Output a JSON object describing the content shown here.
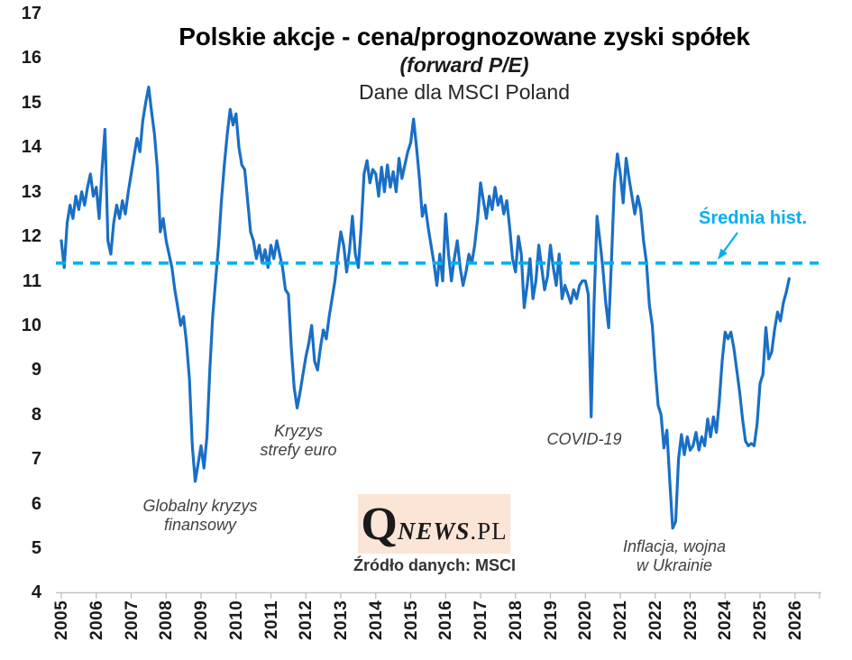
{
  "chart_data": {
    "type": "line",
    "title": "Polskie akcje - cena/prognozowane zyski spółek",
    "subtitle": "(forward P/E)",
    "subtitle2": "Dane dla MSCI Poland",
    "xlabel": "",
    "ylabel": "",
    "ylim": [
      4,
      17
    ],
    "yticks": [
      17,
      16,
      15,
      14,
      13,
      12,
      11,
      10,
      9,
      8,
      7,
      6,
      5,
      4
    ],
    "xticks": [
      2005,
      2006,
      2007,
      2008,
      2009,
      2010,
      2011,
      2012,
      2013,
      2014,
      2015,
      2016,
      2017,
      2018,
      2019,
      2020,
      2021,
      2022,
      2023,
      2024,
      2025,
      2026
    ],
    "grid": false,
    "legend_position": "none",
    "series": [
      {
        "name": "MSCI Poland forward P/E",
        "color": "#1A6FC5",
        "start": "2005-01",
        "frequency": "monthly",
        "values": [
          11.9,
          11.3,
          12.3,
          12.7,
          12.4,
          12.9,
          12.6,
          13.0,
          12.7,
          13.1,
          13.4,
          12.9,
          13.1,
          12.4,
          13.5,
          14.4,
          11.9,
          11.6,
          12.3,
          12.7,
          12.4,
          12.8,
          12.5,
          13.0,
          13.4,
          13.8,
          14.2,
          13.9,
          14.6,
          15.0,
          15.35,
          14.8,
          14.3,
          13.5,
          12.1,
          12.4,
          11.9,
          11.6,
          11.3,
          10.8,
          10.4,
          10.0,
          10.2,
          9.6,
          8.8,
          7.3,
          6.5,
          6.9,
          7.3,
          6.8,
          7.5,
          9.0,
          10.2,
          11.0,
          11.8,
          12.8,
          13.6,
          14.3,
          14.85,
          14.5,
          14.75,
          14.0,
          13.6,
          13.5,
          12.8,
          12.1,
          11.9,
          11.5,
          11.8,
          11.4,
          11.7,
          11.3,
          11.8,
          11.5,
          11.9,
          11.6,
          11.3,
          10.8,
          10.7,
          9.5,
          8.6,
          8.15,
          8.5,
          8.9,
          9.3,
          9.6,
          10.0,
          9.2,
          9.0,
          9.5,
          9.9,
          9.7,
          10.2,
          10.6,
          11.0,
          11.6,
          12.1,
          11.8,
          11.2,
          11.7,
          12.45,
          11.6,
          11.3,
          12.2,
          13.4,
          13.7,
          13.2,
          13.5,
          13.4,
          12.9,
          13.55,
          13.0,
          13.6,
          13.1,
          13.45,
          13.0,
          13.75,
          13.3,
          13.6,
          13.9,
          14.1,
          14.63,
          14.0,
          13.3,
          12.45,
          12.7,
          12.2,
          11.8,
          11.4,
          10.9,
          11.6,
          11.0,
          12.5,
          11.6,
          11.0,
          11.5,
          11.9,
          11.3,
          10.9,
          11.2,
          11.6,
          11.4,
          11.8,
          12.4,
          13.2,
          12.8,
          12.4,
          12.9,
          12.6,
          13.1,
          12.7,
          12.9,
          12.5,
          12.8,
          12.2,
          11.5,
          11.2,
          12.0,
          11.6,
          10.4,
          10.9,
          11.5,
          10.6,
          11.0,
          11.8,
          11.3,
          10.8,
          11.1,
          11.8,
          11.3,
          10.9,
          11.6,
          10.6,
          10.9,
          10.7,
          10.5,
          10.8,
          10.6,
          10.9,
          11.0,
          11.0,
          10.7,
          7.95,
          10.5,
          12.45,
          11.9,
          11.3,
          10.5,
          9.95,
          11.5,
          13.2,
          13.85,
          13.4,
          12.75,
          13.75,
          13.3,
          12.9,
          12.5,
          12.9,
          12.6,
          11.9,
          11.4,
          10.45,
          10.0,
          9.0,
          8.2,
          8.0,
          7.25,
          7.65,
          6.5,
          5.45,
          5.6,
          7.0,
          7.55,
          7.1,
          7.5,
          7.2,
          7.3,
          7.6,
          7.2,
          7.5,
          7.3,
          7.9,
          7.5,
          7.95,
          7.6,
          8.3,
          9.2,
          9.85,
          9.7,
          9.85,
          9.5,
          9.0,
          8.5,
          7.9,
          7.4,
          7.3,
          7.35,
          7.3,
          7.8,
          8.7,
          8.9,
          9.95,
          9.25,
          9.4,
          9.9,
          10.3,
          10.1,
          10.5,
          10.75,
          11.05
        ]
      }
    ],
    "average_line": {
      "value": 11.4,
      "label": "Średnia hist.",
      "color": "#00B0F0",
      "style": "dashed"
    },
    "annotations": [
      {
        "id": "global-financial-crisis",
        "line1": "Globalny kryzys",
        "line2": "finansowy"
      },
      {
        "id": "euro-crisis",
        "line1": "Kryzys",
        "line2": "strefy euro"
      },
      {
        "id": "covid",
        "line1": "COVID-19",
        "line2": ""
      },
      {
        "id": "ukraine",
        "line1": "Inflacja, wojna",
        "line2": "w Ukrainie"
      }
    ],
    "source_note": "Źródło danych: MSCI",
    "logo": {
      "q": "Q",
      "news": "NEWS",
      "pl": ".PL"
    },
    "axis_color": "#BFBFBF"
  }
}
